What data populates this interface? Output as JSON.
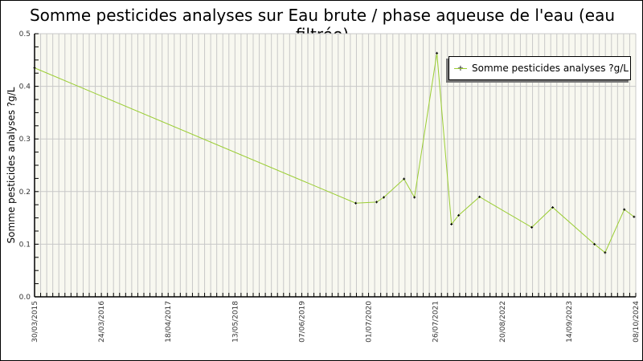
{
  "chart_data": {
    "type": "line",
    "title": "Somme pesticides analyses sur Eau brute / phase aqueuse de l'eau (eau filtrée)",
    "ylabel": "Somme pesticides analyses ?g/L",
    "xlabel": "",
    "ylim": [
      0,
      0.5
    ],
    "yticks": [
      "0.0",
      "0.1",
      "0.2",
      "0.3",
      "0.4",
      "0.5"
    ],
    "xtick_labels": [
      "30/03/2015",
      "24/03/2016",
      "18/04/2017",
      "13/05/2018",
      "07/06/2019",
      "01/07/2020",
      "26/07/2021",
      "20/08/2022",
      "14/09/2023",
      "08/10/2024"
    ],
    "grid": true,
    "legend_position": "top-right",
    "line_color": "#9acd32",
    "marker_color": "#000000",
    "plot_background": "#f8f8f0",
    "series": [
      {
        "name": "Somme pesticides analyses ?g/L",
        "points": [
          [
            "2015-03-30",
            0.435
          ],
          [
            "2020-04-17",
            0.178
          ],
          [
            "2020-08-17",
            0.18
          ],
          [
            "2020-09-28",
            0.189
          ],
          [
            "2021-01-24",
            0.224
          ],
          [
            "2021-03-26",
            0.189
          ],
          [
            "2021-08-04",
            0.463
          ],
          [
            "2021-10-28",
            0.138
          ],
          [
            "2021-12-09",
            0.155
          ],
          [
            "2022-04-10",
            0.19
          ],
          [
            "2023-02-09",
            0.132
          ],
          [
            "2023-06-11",
            0.17
          ],
          [
            "2024-02-10",
            0.1
          ],
          [
            "2024-04-12",
            0.084
          ],
          [
            "2024-08-02",
            0.166
          ],
          [
            "2024-09-28",
            0.152
          ]
        ]
      }
    ]
  }
}
